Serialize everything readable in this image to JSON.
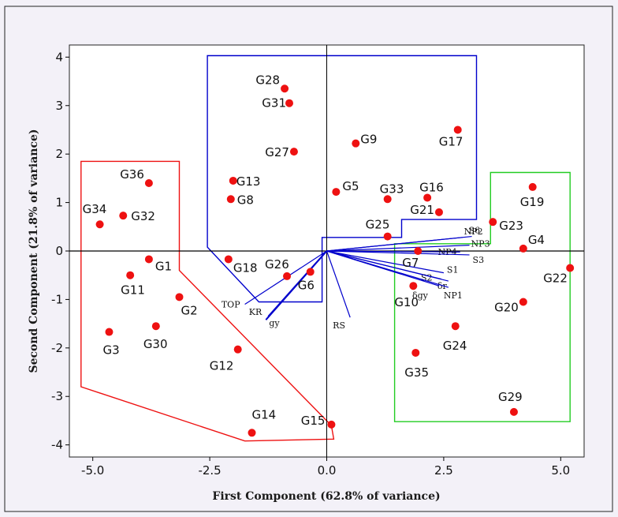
{
  "chart_data": {
    "type": "scatter",
    "title": "",
    "xlabel": "First Component (62.8% of variance)",
    "ylabel": "Second Component (21.8% of variance)",
    "xlim": [
      -5.5,
      5.5
    ],
    "ylim": [
      -4.25,
      4.25
    ],
    "xticks": [
      -5.0,
      -2.5,
      0.0,
      2.5,
      5.0
    ],
    "xtick_labels": [
      "-5.0",
      "-2.5",
      "0.0",
      "2.5",
      "5.0"
    ],
    "yticks": [
      4,
      3,
      2,
      1,
      0,
      -1,
      -2,
      -3,
      -4
    ],
    "ytick_labels": [
      "4",
      "3",
      "2",
      "1",
      "0",
      "-1",
      "-2",
      "-3",
      "-4"
    ],
    "grid": false,
    "point_color": "#ee1111",
    "points": [
      {
        "label": "G28",
        "x": -0.9,
        "y": 3.35
      },
      {
        "label": "G31",
        "x": -0.8,
        "y": 3.05
      },
      {
        "label": "G27",
        "x": -0.7,
        "y": 2.05
      },
      {
        "label": "G9",
        "x": 0.62,
        "y": 2.22
      },
      {
        "label": "G17",
        "x": 2.8,
        "y": 2.5
      },
      {
        "label": "G36",
        "x": -3.8,
        "y": 1.4
      },
      {
        "label": "G13",
        "x": -2.0,
        "y": 1.45
      },
      {
        "label": "G8",
        "x": -2.05,
        "y": 1.07
      },
      {
        "label": "G5",
        "x": 0.2,
        "y": 1.22
      },
      {
        "label": "G33",
        "x": 1.3,
        "y": 1.07
      },
      {
        "label": "G16",
        "x": 2.15,
        "y": 1.1
      },
      {
        "label": "G21",
        "x": 2.4,
        "y": 0.8
      },
      {
        "label": "G19",
        "x": 4.4,
        "y": 1.32
      },
      {
        "label": "G34",
        "x": -4.85,
        "y": 0.55
      },
      {
        "label": "G32",
        "x": -4.35,
        "y": 0.73
      },
      {
        "label": "G23",
        "x": 3.55,
        "y": 0.6
      },
      {
        "label": "G25",
        "x": 1.3,
        "y": 0.3
      },
      {
        "label": "G4",
        "x": 4.2,
        "y": 0.05
      },
      {
        "label": "G1",
        "x": -3.8,
        "y": -0.17
      },
      {
        "label": "G18",
        "x": -2.1,
        "y": -0.17
      },
      {
        "label": "G26",
        "x": -0.85,
        "y": -0.52
      },
      {
        "label": "G6",
        "x": -0.35,
        "y": -0.43
      },
      {
        "label": "G7",
        "x": 1.95,
        "y": 0.0
      },
      {
        "label": "G22",
        "x": 5.2,
        "y": -0.35
      },
      {
        "label": "G11",
        "x": -4.2,
        "y": -0.5
      },
      {
        "label": "G10",
        "x": 1.85,
        "y": -0.72
      },
      {
        "label": "G2",
        "x": -3.15,
        "y": -0.95
      },
      {
        "label": "G20",
        "x": 4.2,
        "y": -1.05
      },
      {
        "label": "G3",
        "x": -4.65,
        "y": -1.67
      },
      {
        "label": "G30",
        "x": -3.65,
        "y": -1.55
      },
      {
        "label": "G24",
        "x": 2.75,
        "y": -1.55
      },
      {
        "label": "G12",
        "x": -1.9,
        "y": -2.03
      },
      {
        "label": "G35",
        "x": 1.9,
        "y": -2.1
      },
      {
        "label": "G29",
        "x": 4.0,
        "y": -3.32
      },
      {
        "label": "G14",
        "x": -1.6,
        "y": -3.75
      },
      {
        "label": "G15",
        "x": 0.1,
        "y": -3.58
      }
    ],
    "vectors": [
      {
        "label": "NP2",
        "x": 2.9,
        "y": 0.28
      },
      {
        "label": "S6",
        "x": 3.1,
        "y": 0.3
      },
      {
        "label": "NP3",
        "x": 3.05,
        "y": 0.12
      },
      {
        "label": "NP4",
        "x": 2.85,
        "y": -0.02
      },
      {
        "label": "S3",
        "x": 3.05,
        "y": -0.08
      },
      {
        "label": "S1",
        "x": 2.5,
        "y": -0.45
      },
      {
        "label": "S2",
        "x": 2.45,
        "y": -0.58
      },
      {
        "label": "δr",
        "x": 2.6,
        "y": -0.62
      },
      {
        "label": "NP1",
        "x": 2.6,
        "y": -0.75
      },
      {
        "label": "δgy",
        "x": 2.4,
        "y": -0.72
      },
      {
        "label": "RS",
        "x": 0.5,
        "y": -1.37
      },
      {
        "label": "TOP",
        "x": -1.75,
        "y": -1.1
      },
      {
        "label": "KR",
        "x": -1.25,
        "y": -1.35
      },
      {
        "label": "gy",
        "x": -1.3,
        "y": -1.42
      }
    ],
    "groups": [
      {
        "color": "#0000cc",
        "polygon": [
          [
            -2.55,
            4.03
          ],
          [
            3.2,
            4.03
          ],
          [
            3.2,
            0.65
          ],
          [
            1.6,
            0.65
          ],
          [
            1.6,
            0.28
          ],
          [
            -0.1,
            0.28
          ],
          [
            -0.1,
            -1.05
          ],
          [
            -1.45,
            -1.05
          ],
          [
            -2.55,
            0.08
          ]
        ]
      },
      {
        "color": "#ee1111",
        "polygon": [
          [
            -5.25,
            1.85
          ],
          [
            -3.15,
            1.85
          ],
          [
            -3.15,
            -0.4
          ],
          [
            0.1,
            -3.6
          ],
          [
            0.15,
            -3.88
          ],
          [
            -1.75,
            -3.92
          ],
          [
            -5.25,
            -2.8
          ]
        ]
      },
      {
        "color": "#22cc22",
        "polygon": [
          [
            3.5,
            1.62
          ],
          [
            5.2,
            1.62
          ],
          [
            5.2,
            -3.52
          ],
          [
            1.45,
            -3.52
          ],
          [
            1.45,
            0.15
          ],
          [
            3.5,
            0.15
          ]
        ]
      }
    ]
  }
}
